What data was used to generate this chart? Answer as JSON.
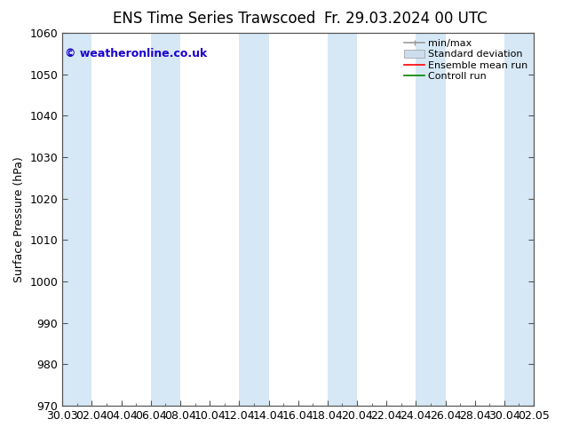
{
  "title_left": "ENS Time Series Trawscoed",
  "title_right": "Fr. 29.03.2024 00 UTC",
  "ylabel": "Surface Pressure (hPa)",
  "ylim": [
    970,
    1060
  ],
  "yticks": [
    970,
    980,
    990,
    1000,
    1010,
    1020,
    1030,
    1040,
    1050,
    1060
  ],
  "xtick_labels": [
    "30.03",
    "02.04",
    "04.04",
    "06.04",
    "08.04",
    "10.04",
    "12.04",
    "14.04",
    "16.04",
    "18.04",
    "20.04",
    "22.04",
    "24.04",
    "26.04",
    "28.04",
    "30.04",
    "02.05"
  ],
  "copyright_text": "© weatheronline.co.uk",
  "copyright_color": "#1a00cc",
  "bg_color": "#ffffff",
  "plot_bg_color": "#ffffff",
  "band_color": "#d6e8f5",
  "legend_minmax_color": "#999999",
  "legend_std_color": "#ccddee",
  "legend_ensemble_color": "#ff0000",
  "legend_control_color": "#008000",
  "title_fontsize": 12,
  "axis_fontsize": 9,
  "ylabel_fontsize": 9,
  "band_indices": [
    0,
    1,
    3,
    4,
    6,
    7,
    9,
    10,
    12,
    13,
    15,
    16
  ],
  "copyright_fontsize": 9,
  "legend_fontsize": 8
}
